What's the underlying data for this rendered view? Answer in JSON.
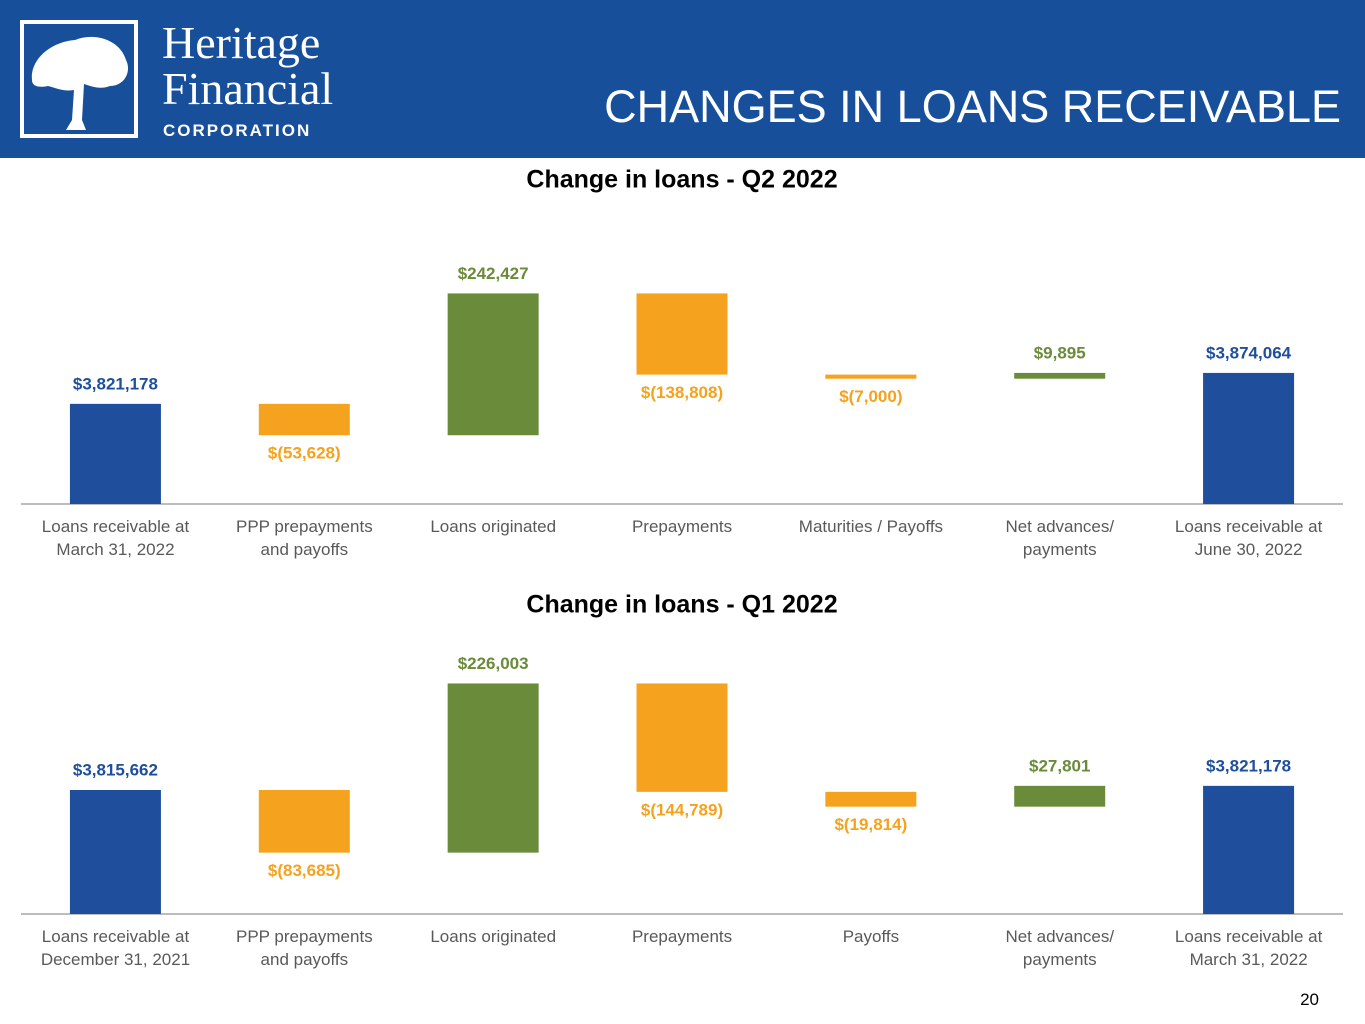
{
  "header": {
    "logo": {
      "line1": "Heritage",
      "line2": "Financial",
      "line3": "CORPORATION"
    },
    "title": "CHANGES IN LOANS RECEIVABLE"
  },
  "chart_data": [
    {
      "type": "waterfall",
      "title": "Change in loans - Q2 2022",
      "categories": [
        "Loans receivable at\nMarch 31, 2022",
        "PPP prepayments\nand payoffs",
        "Loans originated",
        "Prepayments",
        "Maturities / Payoffs",
        "Net advances/\npayments",
        "Loans receivable at\nJune 30, 2022"
      ],
      "values": [
        3821178,
        -53628,
        242427,
        -138808,
        -7000,
        9895,
        3874064
      ],
      "value_labels": [
        "$3,821,178",
        "$(53,628)",
        "$242,427",
        "$(138,808)",
        "$(7,000)",
        "$9,895",
        "$3,874,064"
      ],
      "colors": {
        "total": "#1f4e9c",
        "increase": "#6a8b3a",
        "decrease": "#f5a21e"
      },
      "ylim": [
        3650000,
        4050000
      ]
    },
    {
      "type": "waterfall",
      "title": "Change in loans - Q1 2022",
      "categories": [
        "Loans receivable at\nDecember 31, 2021",
        "PPP prepayments\nand payoffs",
        "Loans originated",
        "Prepayments",
        "Payoffs",
        "Net advances/\npayments",
        "Loans receivable at\nMarch 31, 2022"
      ],
      "values": [
        3815662,
        -83685,
        226003,
        -144789,
        -19814,
        27801,
        3821178
      ],
      "value_labels": [
        "$3,815,662",
        "$(83,685)",
        "$226,003",
        "$(144,789)",
        "$(19,814)",
        "$27,801",
        "$3,821,178"
      ],
      "colors": {
        "total": "#1f4e9c",
        "increase": "#6a8b3a",
        "decrease": "#f5a21e"
      },
      "ylim": [
        3650000,
        4000000
      ]
    }
  ],
  "page_number": 20
}
